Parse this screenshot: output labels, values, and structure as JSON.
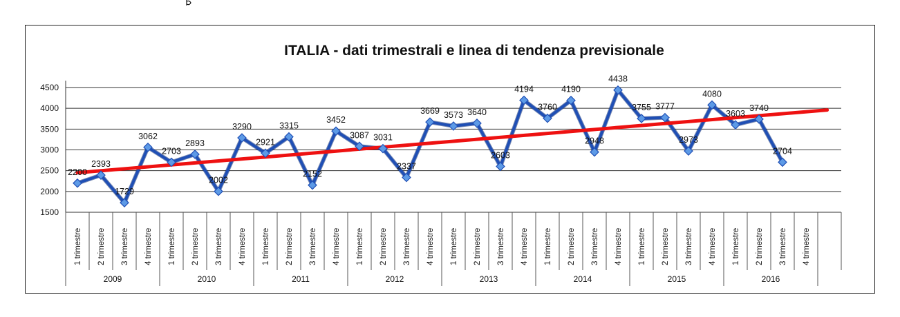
{
  "chart_data": {
    "type": "line",
    "title": "ITALIA - dati trimestrali e linea di tendenza previsionale",
    "xlabel": "",
    "ylabel": "",
    "ylim": [
      1500,
      4500
    ],
    "yticks": [
      1500,
      2000,
      2500,
      3000,
      3500,
      4000,
      4500
    ],
    "years": [
      "2009",
      "2010",
      "2011",
      "2012",
      "2013",
      "2014",
      "2015",
      "2016"
    ],
    "quarters": [
      "1 trimestre",
      "2 trimestre",
      "3 trimestre",
      "4 trimestre"
    ],
    "series": [
      {
        "values": [
          2200,
          2393,
          1729,
          3062,
          2703,
          2893,
          2002,
          3290,
          2921,
          3315,
          2152,
          3452,
          3087,
          3031,
          2337,
          3669,
          3573,
          3640,
          2603,
          4194,
          3760,
          4190,
          2948,
          4438,
          3755,
          3777,
          2973,
          4080,
          3603,
          3740,
          2704,
          null
        ],
        "color": "#1f4fb5"
      }
    ],
    "trendline": {
      "start": 2450,
      "end": 3960,
      "color": "#ee1111"
    },
    "grid": true,
    "legend": "none"
  }
}
